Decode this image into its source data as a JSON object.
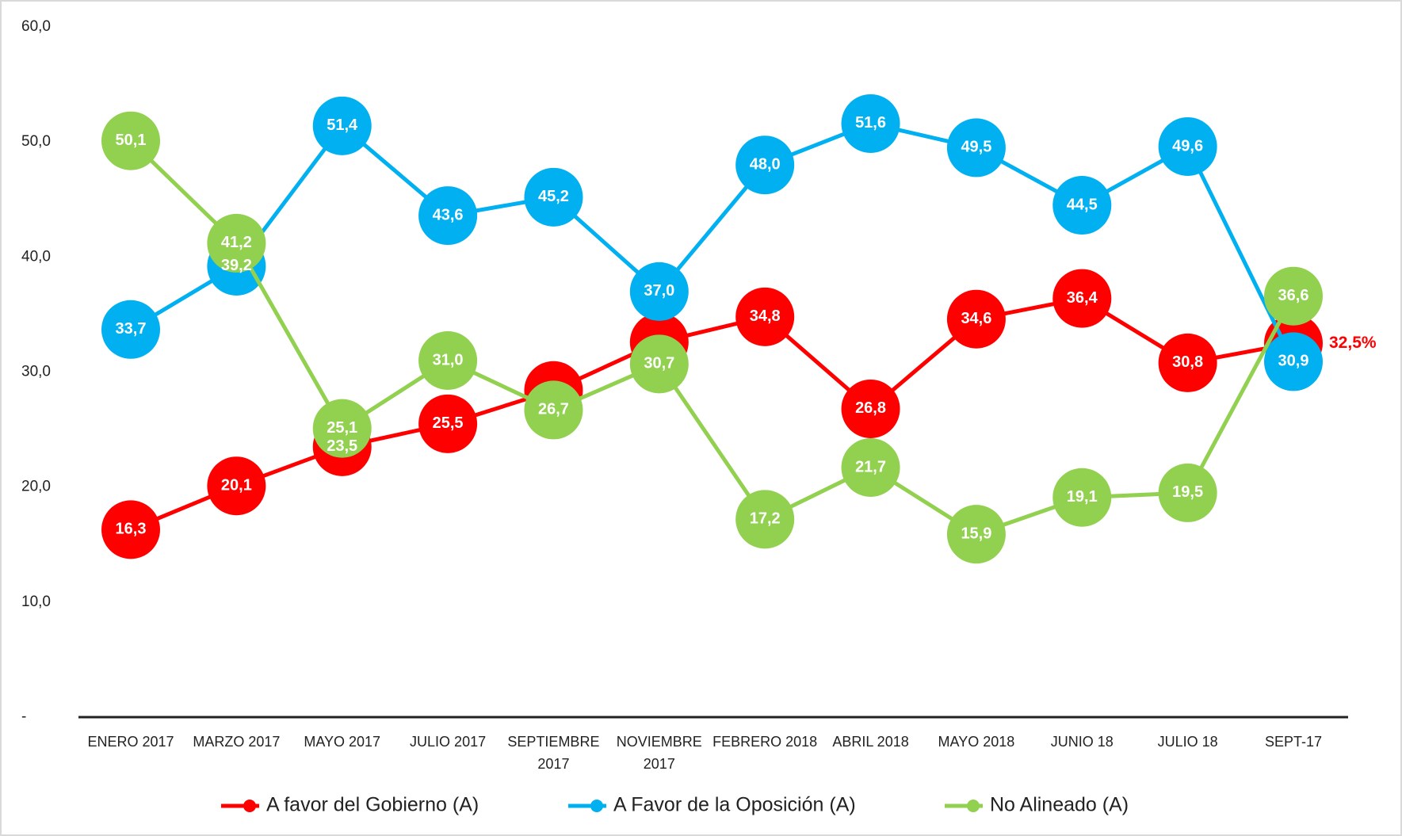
{
  "chart_data": {
    "type": "line",
    "categories": [
      "ENERO 2017",
      "MARZO 2017",
      "MAYO 2017",
      "JULIO 2017",
      "SEPTIEMBRE 2017",
      "NOVIEMBRE 2017",
      "FEBRERO 2018",
      "ABRIL 2018",
      "MAYO 2018",
      "JUNIO 18",
      "JULIO 18",
      "SEPT-17"
    ],
    "series": [
      {
        "name": "A favor del Gobierno (A)",
        "color": "#ff0000",
        "values": [
          16.3,
          20.1,
          23.5,
          25.5,
          28.4,
          32.6,
          34.8,
          26.8,
          34.6,
          36.4,
          30.8,
          32.5
        ],
        "value_labels": [
          "16,3",
          "20,1",
          "23,5",
          "25,5",
          null,
          null,
          "34,8",
          "26,8",
          "34,6",
          "36,4",
          "30,8",
          "32,5%"
        ]
      },
      {
        "name": "A Favor de la Oposición (A)",
        "color": "#00b0f0",
        "values": [
          33.7,
          39.2,
          51.4,
          43.6,
          45.2,
          37.0,
          48.0,
          51.6,
          49.5,
          44.5,
          49.6,
          30.9
        ],
        "value_labels": [
          "33,7",
          "39,2",
          "51,4",
          "43,6",
          "45,2",
          "37,0",
          "48,0",
          "51,6",
          "49,5",
          "44,5",
          "49,6",
          "30,9"
        ]
      },
      {
        "name": "No Alineado (A)",
        "color": "#92d050",
        "values": [
          50.1,
          41.2,
          25.1,
          31.0,
          26.7,
          30.7,
          17.2,
          21.7,
          15.9,
          19.1,
          19.5,
          36.6
        ],
        "value_labels": [
          "50,1",
          "41,2",
          "25,1",
          "31,0",
          "26,7",
          "30,7",
          "17,2",
          "21,7",
          "15,9",
          "19,1",
          "19,5",
          "36,6"
        ]
      }
    ],
    "ylim": [
      0,
      60
    ],
    "yticks": [
      {
        "value": 0,
        "label": "-"
      },
      {
        "value": 10,
        "label": "10,0"
      },
      {
        "value": 20,
        "label": "20,0"
      },
      {
        "value": 30,
        "label": "30,0"
      },
      {
        "value": 40,
        "label": "40,0"
      },
      {
        "value": 50,
        "label": "50,0"
      },
      {
        "value": 60,
        "label": "60,0"
      }
    ],
    "legend": "bottom"
  }
}
